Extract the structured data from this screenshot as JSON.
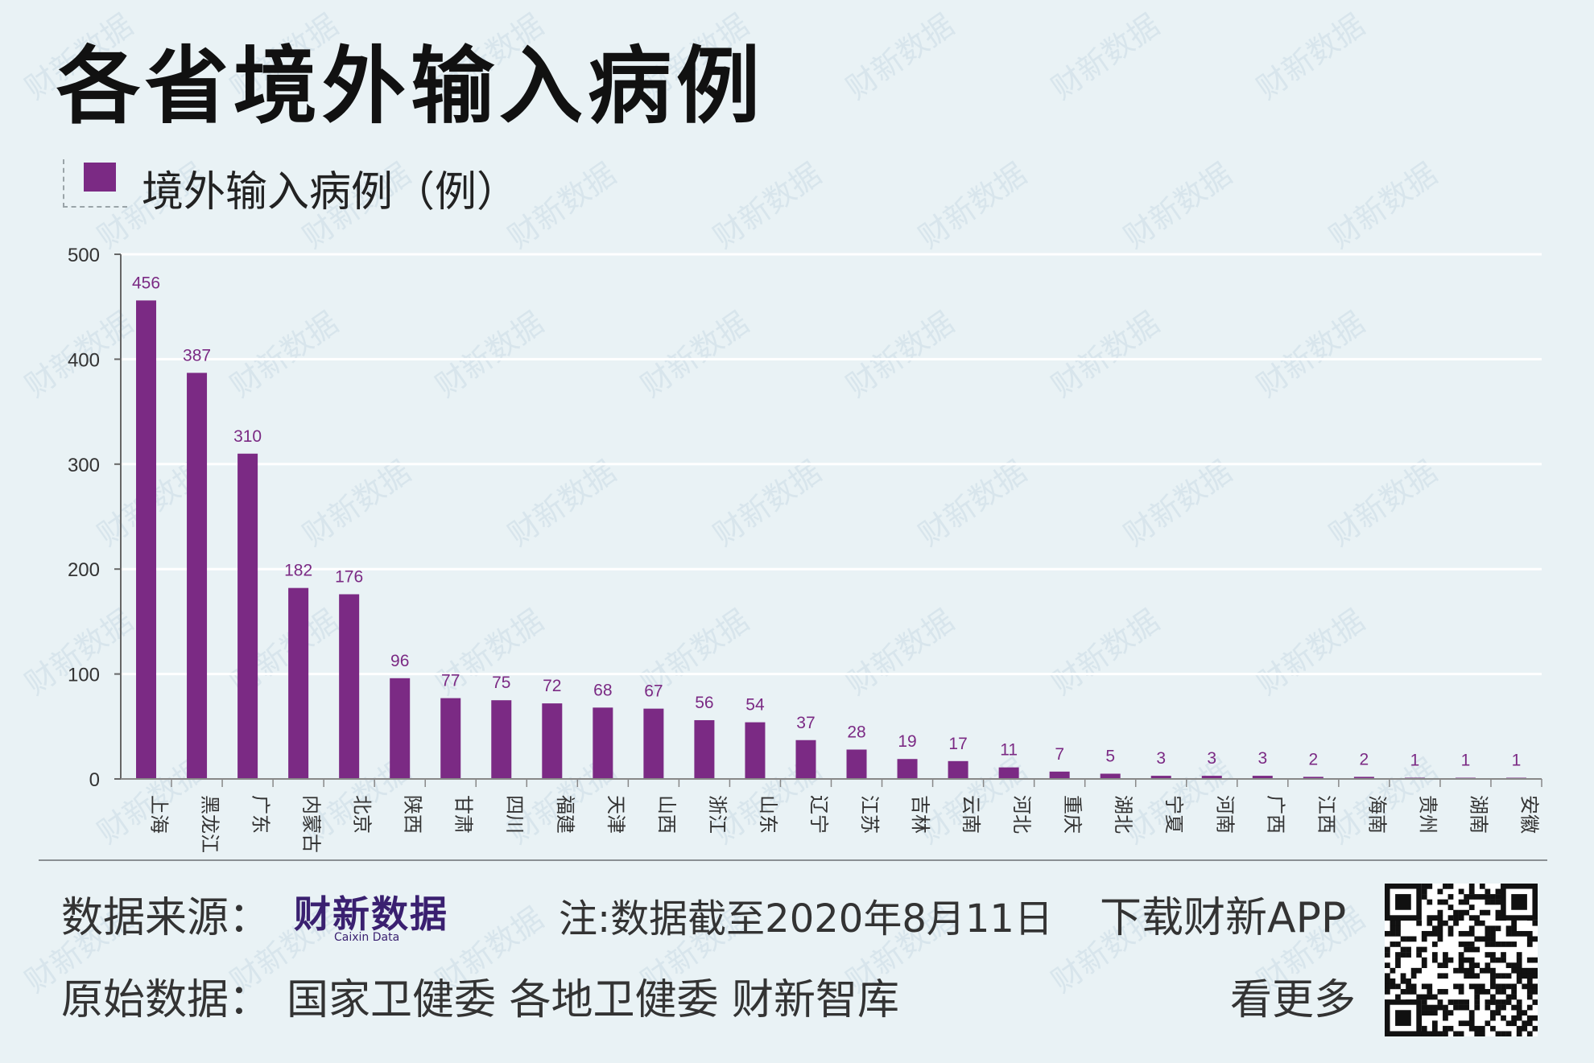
{
  "title": "各省境外输入病例",
  "legend": {
    "label": "境外输入病例（例）",
    "color": "#7b2a84"
  },
  "watermark": "财新数据",
  "chart_data": {
    "type": "bar",
    "categories": [
      "上海",
      "黑龙江",
      "广东",
      "内蒙古",
      "北京",
      "陕西",
      "甘肃",
      "四川",
      "福建",
      "天津",
      "山西",
      "浙江",
      "山东",
      "辽宁",
      "江苏",
      "吉林",
      "云南",
      "河北",
      "重庆",
      "湖北",
      "宁夏",
      "河南",
      "广西",
      "江西",
      "海南",
      "贵州",
      "湖南",
      "安徽"
    ],
    "series": [
      {
        "name": "境外输入病例（例）",
        "values": [
          456,
          387,
          310,
          182,
          176,
          96,
          77,
          75,
          72,
          68,
          67,
          56,
          54,
          37,
          28,
          19,
          17,
          11,
          7,
          5,
          3,
          3,
          3,
          2,
          2,
          1,
          1,
          1
        ]
      }
    ],
    "ylim": [
      0,
      500
    ],
    "yticks": [
      0,
      100,
      200,
      300,
      400,
      500
    ],
    "grid": true,
    "bar_color": "#7b2a84",
    "label_color": "#7b2a84"
  },
  "footer": {
    "source_label": "数据来源：",
    "logo_text": "财新数据",
    "logo_sub": "Caixin Data",
    "note": "注:数据截至2020年8月11日",
    "download": "下载财新APP",
    "original_label": "原始数据：",
    "original_sources": "国家卫健委 各地卫健委 财新智库",
    "see_more": "看更多"
  }
}
